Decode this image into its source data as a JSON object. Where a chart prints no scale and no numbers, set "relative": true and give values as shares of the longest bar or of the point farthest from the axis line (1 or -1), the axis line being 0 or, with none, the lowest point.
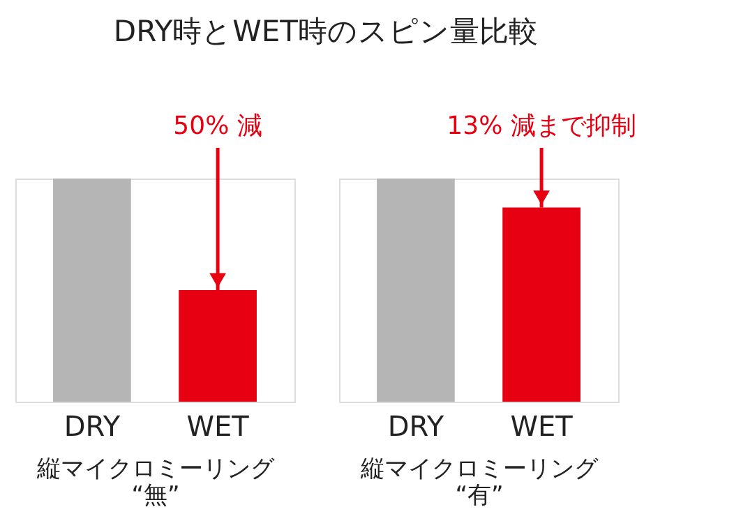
{
  "chart_data": [
    {
      "type": "bar",
      "title": "DRY時とWET時のスピン量比較",
      "categories": [
        "DRY",
        "WET"
      ],
      "values": [
        1,
        0.5
      ],
      "colors": [
        "#b5b5b5",
        "#e60012"
      ],
      "relative": true,
      "xlabel": "縦マイクロミーリング\n“無”",
      "annotations": [
        {
          "text": "50% 減",
          "x": "WET",
          "y": 0.5
        }
      ]
    },
    {
      "type": "bar",
      "categories": [
        "DRY",
        "WET"
      ],
      "values": [
        1,
        0.87
      ],
      "colors": [
        "#b5b5b5",
        "#e60012"
      ],
      "relative": true,
      "xlabel": "縦マイクロミーリング\n“有”",
      "annotations": [
        {
          "text": "13% 減まで抑制",
          "x": "WET",
          "y": 0.87
        }
      ]
    }
  ]
}
